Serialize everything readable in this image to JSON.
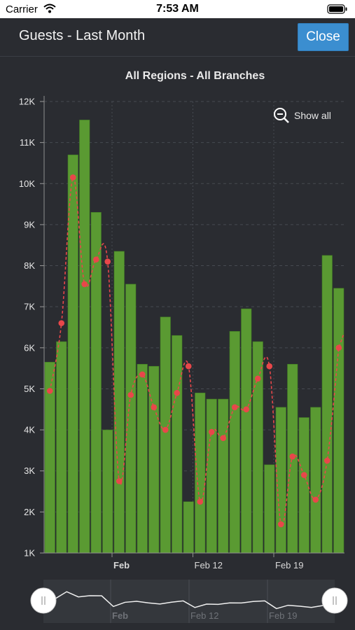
{
  "status_bar": {
    "carrier": "Carrier",
    "time": "7:53 AM"
  },
  "header": {
    "title": "Guests - Last Month",
    "close_label": "Close"
  },
  "zoom": {
    "label": "Show all",
    "icon": "zoom-out-icon"
  },
  "navigator": {
    "labels": [
      "Feb",
      "Feb 12",
      "Feb 19"
    ]
  },
  "colors": {
    "bar": "#5a9a32",
    "line": "#e8474a",
    "accent": "#3b8ed0"
  },
  "chart_data": {
    "type": "bar",
    "title": "All Regions - All Branches",
    "yticks": [
      "1K",
      "2K",
      "3K",
      "4K",
      "5K",
      "6K",
      "7K",
      "8K",
      "9K",
      "10K",
      "11K",
      "12K"
    ],
    "ylim": [
      1000,
      12000
    ],
    "xticks": [
      {
        "label": "Feb",
        "bold": true,
        "index": 6
      },
      {
        "label": "Feb 12",
        "bold": false,
        "index": 13
      },
      {
        "label": "Feb 19",
        "bold": false,
        "index": 20
      }
    ],
    "series": [
      {
        "type": "bar",
        "values": [
          5650,
          6150,
          10700,
          11550,
          9300,
          4000,
          8350,
          7550,
          5600,
          5550,
          6750,
          6300,
          2250,
          4900,
          4750,
          4750,
          6400,
          6950,
          6150,
          3150,
          4550,
          5600,
          4300,
          4550,
          8250,
          7450
        ]
      },
      {
        "type": "line",
        "values": [
          4950,
          6600,
          10150,
          7550,
          8150,
          8100,
          2750,
          4850,
          5350,
          4550,
          4000,
          4900,
          5550,
          2250,
          3950,
          3800,
          4550,
          4500,
          5250,
          5550,
          1700,
          3350,
          2900,
          2300,
          3250,
          6000
        ]
      }
    ],
    "grid": true
  }
}
